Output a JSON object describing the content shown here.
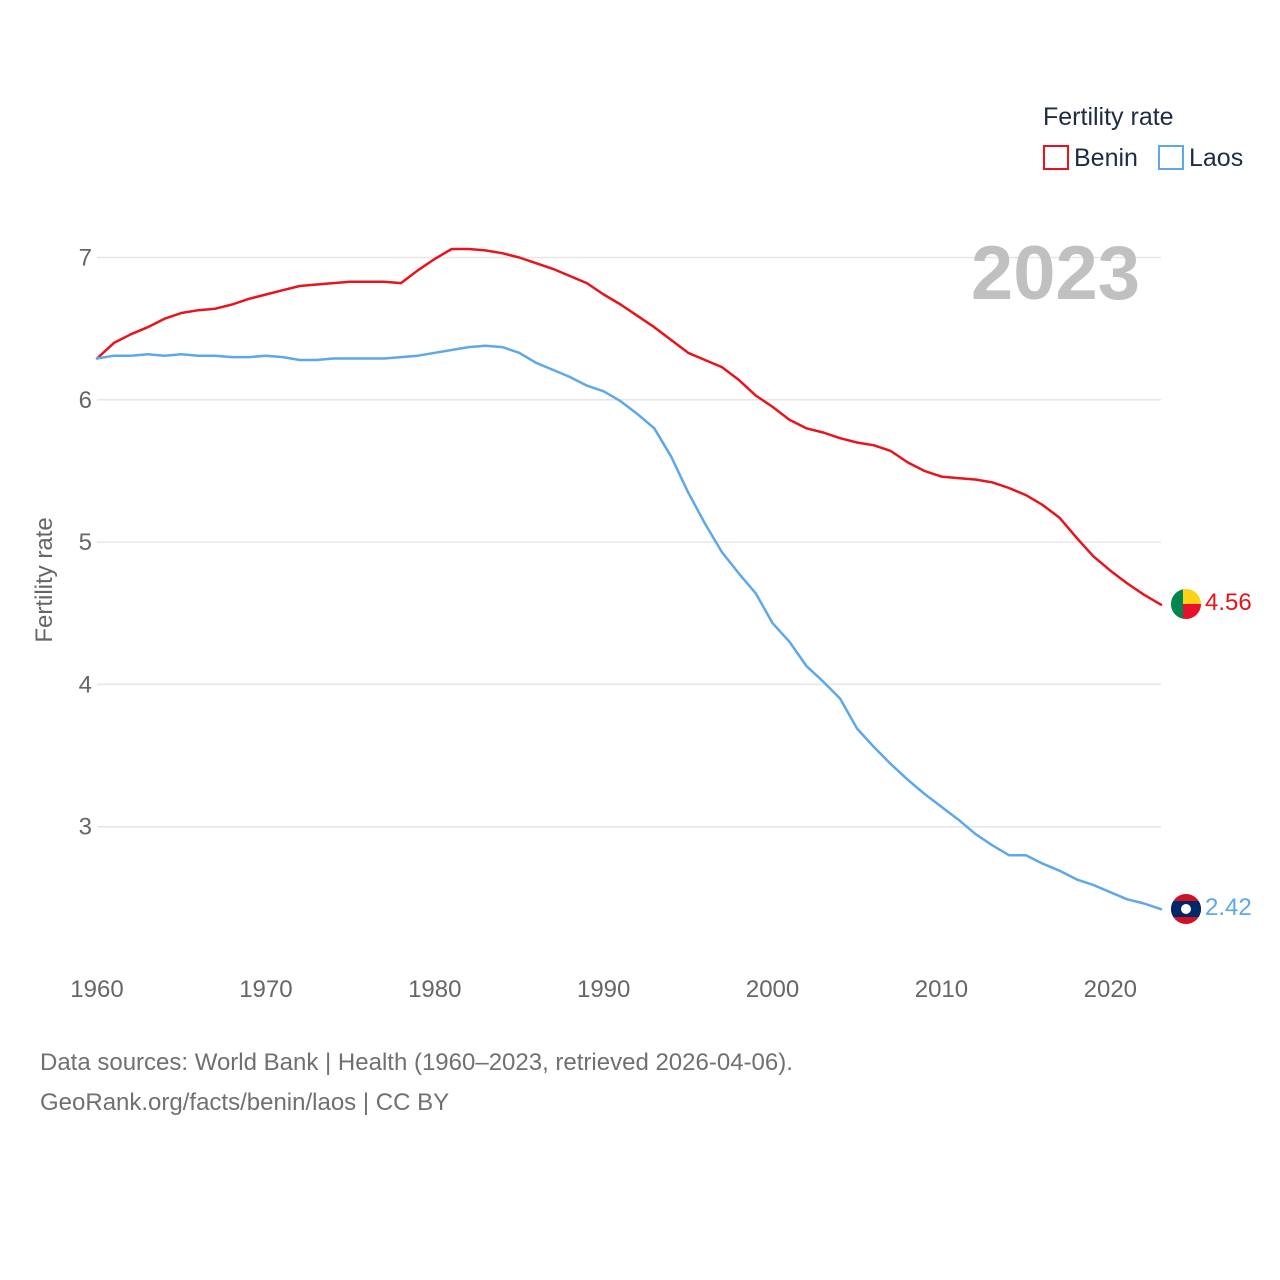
{
  "chart_data": {
    "type": "line",
    "title": "Fertility rate",
    "ylabel": "Fertility rate",
    "xlabel": "",
    "current_year_label": "2023",
    "xlim": [
      1960,
      2023
    ],
    "ylim": [
      2.2,
      7.3
    ],
    "x_ticks": [
      "1960",
      "1970",
      "1980",
      "1990",
      "2000",
      "2010",
      "2020"
    ],
    "y_ticks": [
      "3",
      "4",
      "5",
      "6",
      "7"
    ],
    "x": [
      1960,
      1961,
      1962,
      1963,
      1964,
      1965,
      1966,
      1967,
      1968,
      1969,
      1970,
      1971,
      1972,
      1973,
      1974,
      1975,
      1976,
      1977,
      1978,
      1979,
      1980,
      1981,
      1982,
      1983,
      1984,
      1985,
      1986,
      1987,
      1988,
      1989,
      1990,
      1991,
      1992,
      1993,
      1994,
      1995,
      1996,
      1997,
      1998,
      1999,
      2000,
      2001,
      2002,
      2003,
      2004,
      2005,
      2006,
      2007,
      2008,
      2009,
      2010,
      2011,
      2012,
      2013,
      2014,
      2015,
      2016,
      2017,
      2018,
      2019,
      2020,
      2021,
      2022,
      2023
    ],
    "series": [
      {
        "name": "Benin",
        "color": "#e8141b",
        "end_label": "4.56",
        "flag": "benin-flag-icon",
        "values": [
          6.29,
          6.4,
          6.46,
          6.51,
          6.57,
          6.61,
          6.63,
          6.64,
          6.67,
          6.71,
          6.74,
          6.77,
          6.8,
          6.81,
          6.82,
          6.83,
          6.83,
          6.83,
          6.82,
          6.91,
          6.99,
          7.06,
          7.06,
          7.05,
          7.03,
          7.0,
          6.96,
          6.92,
          6.87,
          6.82,
          6.74,
          6.67,
          6.59,
          6.51,
          6.42,
          6.33,
          6.28,
          6.23,
          6.14,
          6.03,
          5.95,
          5.86,
          5.8,
          5.77,
          5.73,
          5.7,
          5.68,
          5.64,
          5.56,
          5.5,
          5.46,
          5.45,
          5.44,
          5.42,
          5.38,
          5.33,
          5.26,
          5.17,
          5.03,
          4.9,
          4.8,
          4.71,
          4.63,
          4.56
        ]
      },
      {
        "name": "Laos",
        "color": "#5ea8e8",
        "end_label": "2.42",
        "flag": "laos-flag-icon",
        "values": [
          6.29,
          6.31,
          6.31,
          6.32,
          6.31,
          6.32,
          6.31,
          6.31,
          6.3,
          6.3,
          6.31,
          6.3,
          6.28,
          6.28,
          6.29,
          6.29,
          6.29,
          6.29,
          6.3,
          6.31,
          6.33,
          6.35,
          6.37,
          6.38,
          6.37,
          6.33,
          6.26,
          6.21,
          6.16,
          6.1,
          6.06,
          5.99,
          5.9,
          5.8,
          5.6,
          5.35,
          5.13,
          4.93,
          4.78,
          4.64,
          4.43,
          4.3,
          4.13,
          4.02,
          3.9,
          3.69,
          3.56,
          3.44,
          3.33,
          3.23,
          3.14,
          3.05,
          2.95,
          2.87,
          2.8,
          2.8,
          2.74,
          2.69,
          2.63,
          2.59,
          2.54,
          2.49,
          2.46,
          2.42
        ]
      }
    ],
    "legend_position": "top-right"
  },
  "footer": {
    "source_line": "Data sources: World Bank | Health (1960–2023, retrieved 2026-04-06).",
    "license_line": "GeoRank.org/facts/benin/laos | CC BY"
  }
}
